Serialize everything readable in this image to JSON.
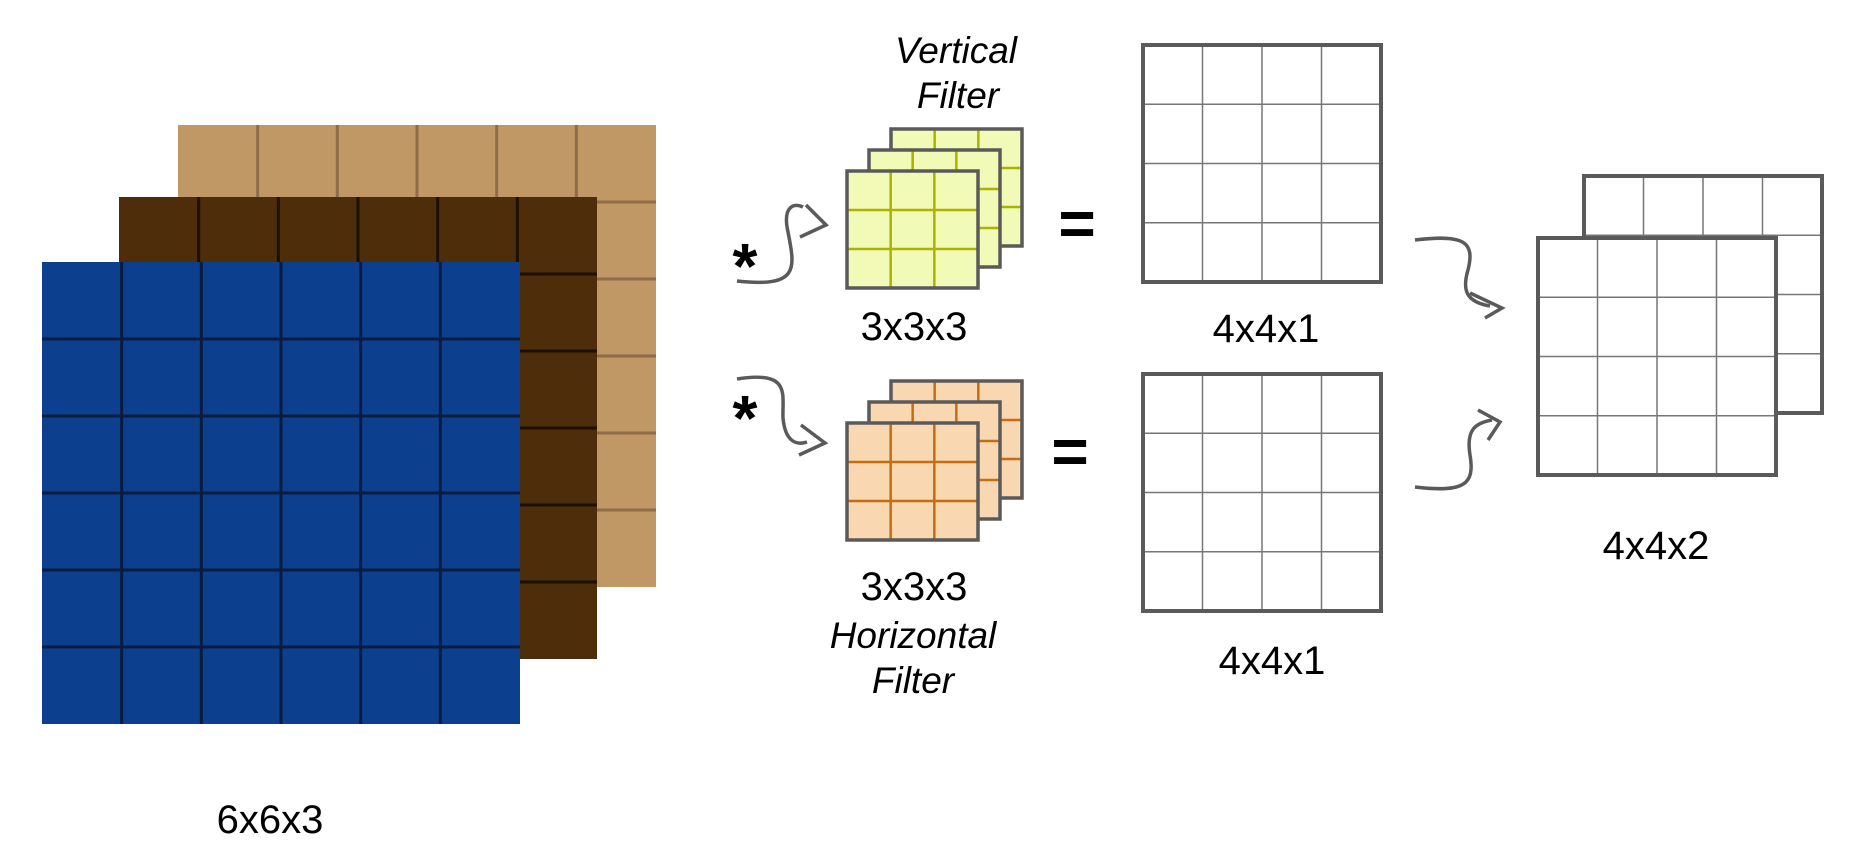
{
  "input_volume": {
    "label": "6x6x3",
    "grid_size": 6,
    "channels": [
      {
        "color": "#c09866",
        "line": "#8e6d48"
      },
      {
        "color": "#4e2e0a",
        "line": "#1d0f02"
      },
      {
        "color": "#0d3f8f",
        "line": "#0a1c3d"
      }
    ]
  },
  "filters": [
    {
      "title_line1": "Vertical",
      "title_line2": "Filter",
      "dims": "3x3x3",
      "fill": "#f2fab7",
      "line": "#a8b400",
      "operator": "*",
      "equals": "=",
      "output_label": "4x4x1"
    },
    {
      "title_line1": "Horizontal",
      "title_line2": "Filter",
      "dims": "3x3x3",
      "fill": "#f9d8b1",
      "line": "#c56d10",
      "operator": "*",
      "equals": "=",
      "output_label": "4x4x1"
    }
  ],
  "stacked_output": {
    "label": "4x4x2",
    "grid_size": 4
  },
  "colors": {
    "grid_border": "#5a5a5a",
    "grid_line": "#777777",
    "arrow": "#5a5a5a"
  }
}
